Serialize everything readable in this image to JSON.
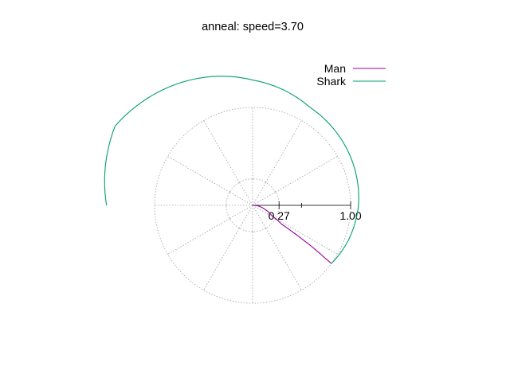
{
  "chart_data": {
    "type": "line",
    "coordinate_system": "polar",
    "title": "anneal: speed=3.70",
    "r_max": 1.0,
    "r_ticks": [
      {
        "value": 0.27,
        "label": "0.27"
      },
      {
        "value": 1.0,
        "label": "1.00"
      }
    ],
    "r_minor_ticks": [
      0.5
    ],
    "grid_circles": [
      0.27,
      1.0
    ],
    "spoke_step_deg": 30,
    "grid": true,
    "legend_position": "top-right",
    "series": [
      {
        "name": "Man",
        "color": "#94009c",
        "points": [
          {
            "theta_deg": 0,
            "r": 0.0
          },
          {
            "theta_deg": -7,
            "r": 0.06
          },
          {
            "theta_deg": -18,
            "r": 0.13
          },
          {
            "theta_deg": -28,
            "r": 0.22
          },
          {
            "theta_deg": -33,
            "r": 0.35
          },
          {
            "theta_deg": -34,
            "r": 0.55
          },
          {
            "theta_deg": -35,
            "r": 0.75
          },
          {
            "theta_deg": -36,
            "r": 0.9
          },
          {
            "theta_deg": -36.5,
            "r": 1.0
          }
        ]
      },
      {
        "name": "Shark",
        "color": "#009e73",
        "points": [
          {
            "theta_deg": -36.5,
            "r": 1.0
          },
          {
            "theta_deg": -20,
            "r": 1.04
          },
          {
            "theta_deg": 0,
            "r": 1.08
          },
          {
            "theta_deg": 30,
            "r": 1.12
          },
          {
            "theta_deg": 60,
            "r": 1.16
          },
          {
            "theta_deg": 90,
            "r": 1.28
          },
          {
            "theta_deg": 120,
            "r": 1.45
          },
          {
            "theta_deg": 150,
            "r": 1.62
          },
          {
            "theta_deg": 180,
            "r": 1.49
          }
        ]
      }
    ]
  }
}
